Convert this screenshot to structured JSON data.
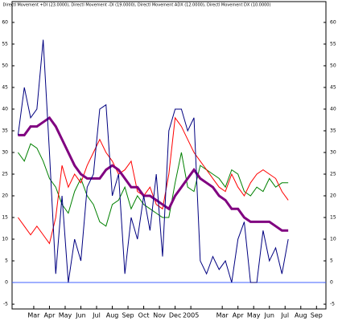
{
  "chart_data": {
    "type": "line",
    "title": "Directl Movement +DI (23.0000), Directl Movement -DI (19.0000), Directl Movement ADX (12.0000), Directl Movement DX (10.0000)",
    "x": [
      0,
      0.4,
      0.8,
      1.2,
      1.6,
      2,
      2.4,
      2.8,
      3.2,
      3.6,
      4,
      4.4,
      4.8,
      5.2,
      5.6,
      6,
      6.4,
      6.8,
      7.2,
      7.6,
      8,
      8.4,
      8.8,
      9.2,
      9.6,
      10,
      10.4,
      10.8,
      11.2,
      11.6,
      12,
      12.4,
      12.8,
      13.2,
      13.6,
      14,
      14.4,
      14.8,
      15.2,
      15.6,
      16,
      16.4,
      16.8,
      17.2
    ],
    "series": [
      {
        "name": "+DI",
        "color": "#008000",
        "width": 1,
        "values": [
          30,
          28,
          32,
          31,
          28,
          24,
          22,
          18,
          16,
          21,
          24,
          20,
          18,
          14,
          13,
          18,
          19,
          22,
          17,
          20,
          18,
          17,
          16,
          15,
          15,
          23,
          30,
          22,
          21,
          27,
          26,
          25,
          24,
          22,
          26,
          25,
          21,
          20,
          22,
          21,
          24,
          22,
          23,
          23
        ]
      },
      {
        "name": "-DI",
        "color": "#ff0000",
        "width": 1,
        "values": [
          15,
          13,
          11,
          13,
          11,
          9,
          15,
          27,
          22,
          25,
          23,
          27,
          30,
          33,
          30,
          28,
          25,
          26,
          28,
          21,
          20,
          22,
          18,
          17,
          25,
          38,
          36,
          33,
          30,
          28,
          26,
          24,
          22,
          21,
          25,
          22,
          20,
          23,
          25,
          26,
          25,
          24,
          21,
          19
        ]
      },
      {
        "name": "ADX",
        "color": "#800080",
        "width": 3,
        "values": [
          34,
          34,
          36,
          36,
          37,
          38,
          36,
          33,
          30,
          27,
          25,
          24,
          24,
          24,
          26,
          27,
          26,
          24,
          22,
          22,
          20,
          20,
          19,
          18,
          17,
          20,
          22,
          24,
          26,
          24,
          23,
          22,
          20,
          19,
          17,
          17,
          15,
          14,
          14,
          14,
          14,
          13,
          12,
          12
        ]
      },
      {
        "name": "DX",
        "color": "#000080",
        "width": 1,
        "values": [
          34,
          45,
          38,
          40,
          56,
          30,
          2,
          20,
          0,
          10,
          5,
          22,
          25,
          40,
          41,
          20,
          25,
          2,
          15,
          10,
          20,
          12,
          25,
          6,
          35,
          40,
          40,
          35,
          38,
          5,
          2,
          6,
          3,
          5,
          0,
          10,
          14,
          0,
          0,
          12,
          5,
          8,
          2,
          10
        ]
      }
    ],
    "hline": 0,
    "hline_color": "#4060ff",
    "xlim": [
      -0.38,
      19.6
    ],
    "xticks": [
      {
        "value": 1,
        "label": "Mar"
      },
      {
        "value": 2,
        "label": "Apr"
      },
      {
        "value": 3,
        "label": "May"
      },
      {
        "value": 4,
        "label": "Jun"
      },
      {
        "value": 5,
        "label": "Jul"
      },
      {
        "value": 6,
        "label": "Aug"
      },
      {
        "value": 7,
        "label": "Sep"
      },
      {
        "value": 8,
        "label": "Oct"
      },
      {
        "value": 9,
        "label": "Nov"
      },
      {
        "value": 10,
        "label": "Dec"
      },
      {
        "value": 11,
        "label": "2005"
      },
      {
        "value": 13,
        "label": "Mar"
      },
      {
        "value": 14,
        "label": "Apr"
      },
      {
        "value": 15,
        "label": "May"
      },
      {
        "value": 16,
        "label": "Jun"
      },
      {
        "value": 17,
        "label": "Jul"
      },
      {
        "value": 18,
        "label": "Aug"
      },
      {
        "value": 19,
        "label": "Sep"
      }
    ],
    "ylim": [
      -6.1,
      64.8
    ],
    "yticks": [
      -5,
      0,
      5,
      10,
      15,
      20,
      25,
      30,
      35,
      40,
      45,
      50,
      55,
      60
    ]
  }
}
